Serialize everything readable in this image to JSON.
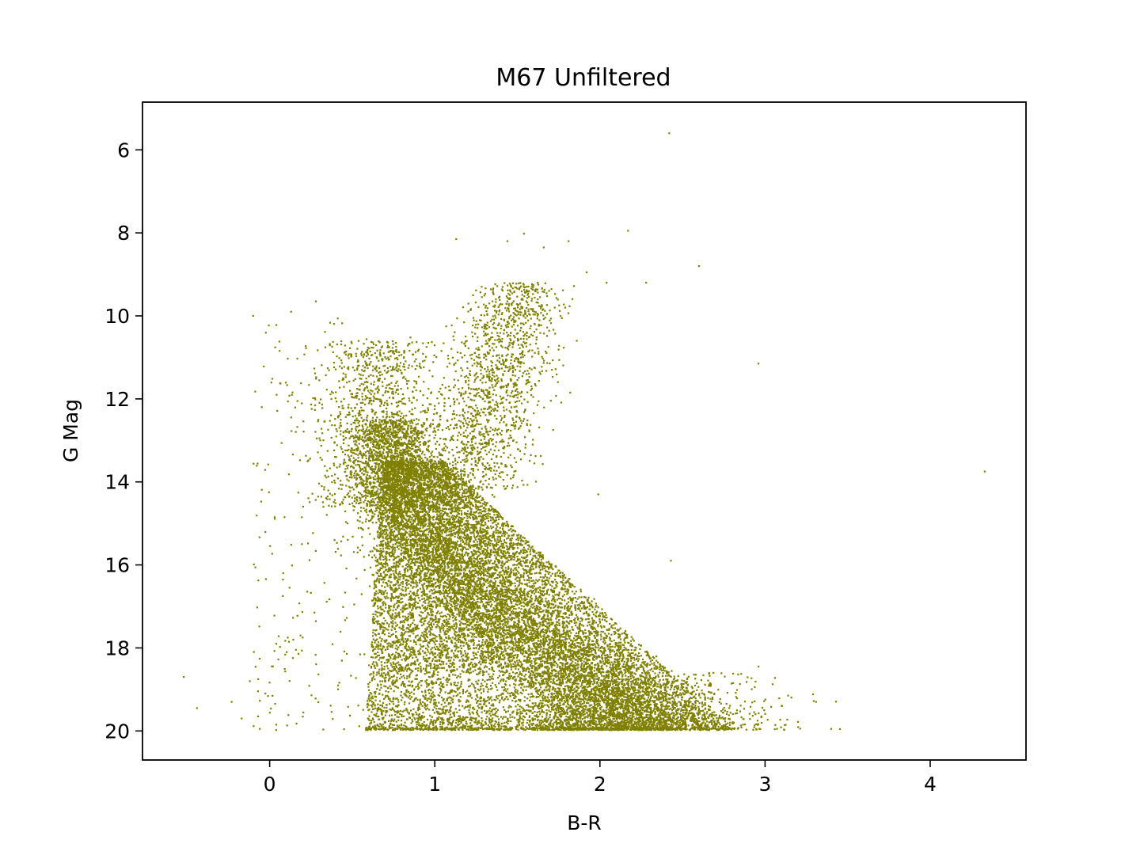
{
  "chart_data": {
    "type": "scatter",
    "title": "M67 Unfiltered",
    "xlabel": "B-R",
    "ylabel": "G Mag",
    "xlim": [
      -0.77,
      4.58
    ],
    "ylim": [
      20.7,
      4.85
    ],
    "y_inverted": true,
    "xticks": [
      0,
      1,
      2,
      3,
      4
    ],
    "yticks": [
      6,
      8,
      10,
      12,
      14,
      16,
      18,
      20
    ],
    "grid": false,
    "legend": "none",
    "marker_color": "#808000",
    "approx_point_count": 20000,
    "notable_points": [
      {
        "x": 2.42,
        "y": 5.6
      },
      {
        "x": 2.17,
        "y": 7.95
      },
      {
        "x": 1.54,
        "y": 8.02
      },
      {
        "x": 1.13,
        "y": 8.15
      },
      {
        "x": 1.44,
        "y": 8.2
      },
      {
        "x": 1.81,
        "y": 8.2
      },
      {
        "x": 1.66,
        "y": 8.35
      },
      {
        "x": 2.6,
        "y": 8.8
      },
      {
        "x": 1.92,
        "y": 8.95
      },
      {
        "x": 2.04,
        "y": 9.2
      },
      {
        "x": 2.28,
        "y": 9.2
      },
      {
        "x": -0.1,
        "y": 10.0
      },
      {
        "x": 0.28,
        "y": 9.65
      },
      {
        "x": 0.13,
        "y": 9.9
      },
      {
        "x": 1.86,
        "y": 10.6
      },
      {
        "x": 2.96,
        "y": 11.15
      },
      {
        "x": 1.82,
        "y": 11.85
      },
      {
        "x": 4.33,
        "y": 13.75
      },
      {
        "x": 1.99,
        "y": 14.3
      },
      {
        "x": 0.03,
        "y": 14.85
      },
      {
        "x": 0.09,
        "y": 14.85
      },
      {
        "x": 2.43,
        "y": 15.9
      },
      {
        "x": -0.52,
        "y": 18.7
      },
      {
        "x": -0.12,
        "y": 18.8
      },
      {
        "x": -0.44,
        "y": 19.45
      },
      {
        "x": -0.23,
        "y": 19.3
      },
      {
        "x": -0.17,
        "y": 19.7
      },
      {
        "x": -0.07,
        "y": 19.65
      },
      {
        "x": -0.06,
        "y": 19.95
      },
      {
        "x": 0.04,
        "y": 19.85
      },
      {
        "x": 0.04,
        "y": 17.9
      },
      {
        "x": 0.08,
        "y": 16.75
      },
      {
        "x": 0.12,
        "y": 16.55
      },
      {
        "x": 0.2,
        "y": 17.75
      },
      {
        "x": 3.1,
        "y": 19.4
      },
      {
        "x": 3.4,
        "y": 19.95
      },
      {
        "x": 2.96,
        "y": 18.45
      }
    ]
  }
}
